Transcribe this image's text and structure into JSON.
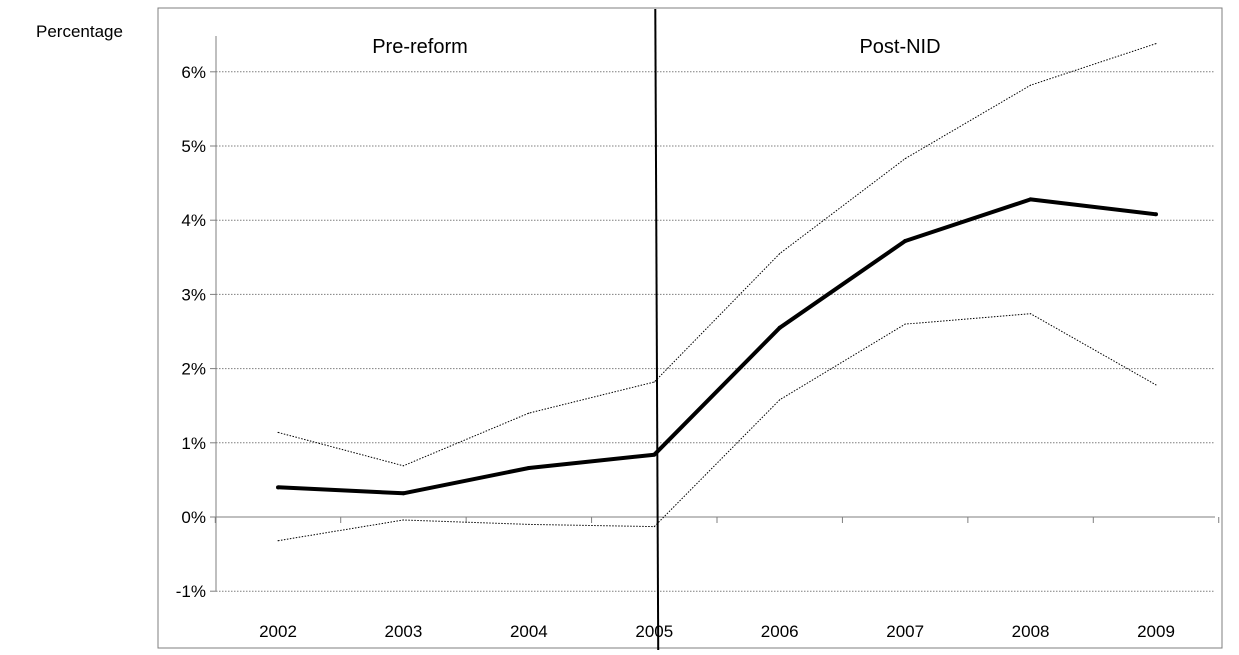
{
  "chart_data": {
    "type": "line",
    "title": "",
    "xlabel": "",
    "ylabel": "Percentage",
    "x": [
      2002,
      2003,
      2004,
      2005,
      2006,
      2007,
      2008,
      2009
    ],
    "ylim": [
      -1,
      6.5
    ],
    "yticks": [
      -1,
      0,
      1,
      2,
      3,
      4,
      5,
      6
    ],
    "ytick_labels": [
      "-1%",
      "0%",
      "1%",
      "2%",
      "3%",
      "4%",
      "5%",
      "6%"
    ],
    "grid": "horizontal dotted",
    "series": [
      {
        "name": "",
        "style": "solid-thick",
        "values": [
          0.4,
          0.32,
          0.66,
          0.84,
          2.55,
          3.72,
          4.28,
          4.08
        ]
      },
      {
        "name": "",
        "style": "dotted-thin",
        "values": [
          1.14,
          0.69,
          1.4,
          1.82,
          3.55,
          4.83,
          5.82,
          6.38
        ]
      },
      {
        "name": "",
        "style": "dotted-thin",
        "values": [
          -0.32,
          -0.04,
          -0.1,
          -0.13,
          1.58,
          2.6,
          2.74,
          1.78
        ]
      }
    ],
    "annotations": [
      {
        "text": "Pre-reform",
        "region": "left"
      },
      {
        "text": "Post-NID",
        "region": "right"
      }
    ],
    "reference_line_x": 2005,
    "colors": {
      "main": "#000000",
      "grid": "#7f7f7f",
      "frame": "#7f7f7f"
    }
  }
}
